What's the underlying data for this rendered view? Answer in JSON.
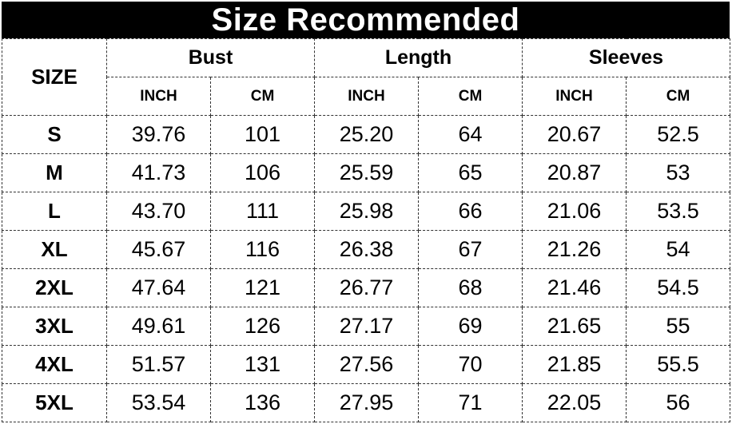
{
  "title": "Size Recommended",
  "header": {
    "size": "SIZE",
    "groups": [
      "Bust",
      "Length",
      "Sleeves"
    ],
    "units": [
      "INCH",
      "CM"
    ]
  },
  "rows": [
    {
      "size": "S",
      "bust_in": "39.76",
      "bust_cm": "101",
      "length_in": "25.20",
      "length_cm": "64",
      "sleeves_in": "20.67",
      "sleeves_cm": "52.5"
    },
    {
      "size": "M",
      "bust_in": "41.73",
      "bust_cm": "106",
      "length_in": "25.59",
      "length_cm": "65",
      "sleeves_in": "20.87",
      "sleeves_cm": "53"
    },
    {
      "size": "L",
      "bust_in": "43.70",
      "bust_cm": "111",
      "length_in": "25.98",
      "length_cm": "66",
      "sleeves_in": "21.06",
      "sleeves_cm": "53.5"
    },
    {
      "size": "XL",
      "bust_in": "45.67",
      "bust_cm": "116",
      "length_in": "26.38",
      "length_cm": "67",
      "sleeves_in": "21.26",
      "sleeves_cm": "54"
    },
    {
      "size": "2XL",
      "bust_in": "47.64",
      "bust_cm": "121",
      "length_in": "26.77",
      "length_cm": "68",
      "sleeves_in": "21.46",
      "sleeves_cm": "54.5"
    },
    {
      "size": "3XL",
      "bust_in": "49.61",
      "bust_cm": "126",
      "length_in": "27.17",
      "length_cm": "69",
      "sleeves_in": "21.65",
      "sleeves_cm": "55"
    },
    {
      "size": "4XL",
      "bust_in": "51.57",
      "bust_cm": "131",
      "length_in": "27.56",
      "length_cm": "70",
      "sleeves_in": "21.85",
      "sleeves_cm": "55.5"
    },
    {
      "size": "5XL",
      "bust_in": "53.54",
      "bust_cm": "136",
      "length_in": "27.95",
      "length_cm": "71",
      "sleeves_in": "22.05",
      "sleeves_cm": "56"
    }
  ]
}
